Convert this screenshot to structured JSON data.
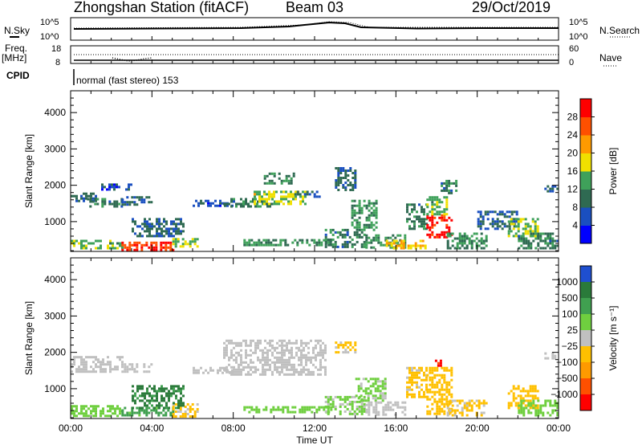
{
  "header": {
    "station": "Zhongshan Station (fitACF)",
    "beam": "Beam 03",
    "date": "29/Oct/2019"
  },
  "strip1": {
    "left_label": "N.Sky",
    "right_label": "N.Search",
    "left_ticks": [
      "10^5",
      "10^0"
    ],
    "right_ticks": [
      "10^5",
      "10^0"
    ]
  },
  "strip2": {
    "left_label_1": "Freq.",
    "left_label_2": "[MHz]",
    "right_label": "Nave",
    "left_ticks": [
      "18",
      "8"
    ],
    "right_ticks": [
      "60",
      "0"
    ]
  },
  "cpid": {
    "label": "CPID",
    "text": "normal (fast stereo) 153"
  },
  "power_panel": {
    "ylabel": "Slant Range [km]",
    "colorbar_label": "Power [dB]",
    "colorbar_ticks": [
      "28",
      "24",
      "20",
      "16",
      "12",
      "8",
      "4"
    ],
    "colors": [
      "#0000ff",
      "#1a4fc0",
      "#2f6a52",
      "#3fa15a",
      "#f0e000",
      "#ff9a00",
      "#ff5000",
      "#ff0000"
    ]
  },
  "velocity_panel": {
    "ylabel": "Slant Range [km]",
    "colorbar_label": "Velocity [m s⁻¹]",
    "colorbar_ticks": [
      "1000",
      "500",
      "100",
      "25",
      "−25",
      "−100",
      "−500",
      "−1000"
    ],
    "colors": [
      "#1f4fd0",
      "#2a7a3a",
      "#40a050",
      "#6fcf3f",
      "#c0c0c0",
      "#ffc000",
      "#ff9a00",
      "#ff5000",
      "#ff0000"
    ]
  },
  "x_axis": {
    "label": "Time UT",
    "ticks": [
      "00:00",
      "04:00",
      "08:00",
      "12:00",
      "16:00",
      "20:00",
      "00:00"
    ]
  },
  "chart_data": [
    {
      "type": "heatmap",
      "title": "Power [dB]",
      "xlabel": "Time UT",
      "ylabel": "Slant Range [km]",
      "xlim": [
        0,
        24
      ],
      "ylim": [
        180,
        4600
      ],
      "clim": [
        0,
        30
      ],
      "regions": [
        {
          "t": [
            0.0,
            1.3
          ],
          "r": [
            1600,
            1800
          ],
          "v": 8
        },
        {
          "t": [
            0.8,
            2.5
          ],
          "r": [
            1450,
            1650
          ],
          "v": 10
        },
        {
          "t": [
            2.5,
            4.0
          ],
          "r": [
            1500,
            1700
          ],
          "v": 8
        },
        {
          "t": [
            0.0,
            2.5
          ],
          "r": [
            280,
            500
          ],
          "v": 14
        },
        {
          "t": [
            2.5,
            5.0
          ],
          "r": [
            250,
            450
          ],
          "v": 26
        },
        {
          "t": [
            5.0,
            6.2
          ],
          "r": [
            300,
            550
          ],
          "v": 14
        },
        {
          "t": [
            3.0,
            5.5
          ],
          "r": [
            600,
            1100
          ],
          "v": 8
        },
        {
          "t": [
            1.5,
            3.0
          ],
          "r": [
            1900,
            2050
          ],
          "v": 6
        },
        {
          "t": [
            6.0,
            8.0
          ],
          "r": [
            1450,
            1600
          ],
          "v": 6
        },
        {
          "t": [
            7.5,
            10.0
          ],
          "r": [
            1450,
            1650
          ],
          "v": 10
        },
        {
          "t": [
            9.0,
            11.5
          ],
          "r": [
            1500,
            1850
          ],
          "v": 16
        },
        {
          "t": [
            9.5,
            11.0
          ],
          "r": [
            2050,
            2350
          ],
          "v": 10
        },
        {
          "t": [
            11.0,
            12.2
          ],
          "r": [
            1700,
            1850
          ],
          "v": 8
        },
        {
          "t": [
            8.5,
            12.8
          ],
          "r": [
            330,
            520
          ],
          "v": 12
        },
        {
          "t": [
            12.5,
            14.5
          ],
          "r": [
            300,
            800
          ],
          "v": 10
        },
        {
          "t": [
            13.0,
            14.0
          ],
          "r": [
            1900,
            2500
          ],
          "v": 8
        },
        {
          "t": [
            13.8,
            15.0
          ],
          "r": [
            800,
            1600
          ],
          "v": 12
        },
        {
          "t": [
            14.5,
            16.5
          ],
          "r": [
            280,
            650
          ],
          "v": 12
        },
        {
          "t": [
            15.5,
            17.5
          ],
          "r": [
            300,
            500
          ],
          "v": 18
        },
        {
          "t": [
            16.5,
            17.5
          ],
          "r": [
            800,
            1500
          ],
          "v": 10
        },
        {
          "t": [
            17.5,
            18.8
          ],
          "r": [
            600,
            1200
          ],
          "v": 28
        },
        {
          "t": [
            17.5,
            18.5
          ],
          "r": [
            1200,
            1700
          ],
          "v": 14
        },
        {
          "t": [
            18.2,
            19.0
          ],
          "r": [
            1800,
            2150
          ],
          "v": 10
        },
        {
          "t": [
            18.5,
            20.5
          ],
          "r": [
            300,
            700
          ],
          "v": 12
        },
        {
          "t": [
            20.0,
            22.0
          ],
          "r": [
            800,
            1300
          ],
          "v": 8
        },
        {
          "t": [
            21.5,
            23.0
          ],
          "r": [
            600,
            1100
          ],
          "v": 14
        },
        {
          "t": [
            22.0,
            24.0
          ],
          "r": [
            300,
            700
          ],
          "v": 10
        },
        {
          "t": [
            23.3,
            24.0
          ],
          "r": [
            1850,
            2000
          ],
          "v": 8
        }
      ]
    },
    {
      "type": "heatmap",
      "title": "Velocity [m s⁻¹]",
      "xlabel": "Time UT",
      "ylabel": "Slant Range [km]",
      "xlim": [
        0,
        24
      ],
      "ylim": [
        180,
        4600
      ],
      "clim": [
        -1000,
        1000
      ],
      "regions": [
        {
          "t": [
            0.0,
            2.5
          ],
          "r": [
            1500,
            1900
          ],
          "v": 0
        },
        {
          "t": [
            2.5,
            4.0
          ],
          "r": [
            1500,
            1700
          ],
          "v": 0
        },
        {
          "t": [
            0.0,
            2.5
          ],
          "r": [
            280,
            550
          ],
          "v": 200
        },
        {
          "t": [
            2.5,
            5.0
          ],
          "r": [
            300,
            500
          ],
          "v": 400
        },
        {
          "t": [
            5.0,
            6.3
          ],
          "r": [
            250,
            600
          ],
          "v": -150
        },
        {
          "t": [
            3.0,
            5.5
          ],
          "r": [
            500,
            1100
          ],
          "v": 600
        },
        {
          "t": [
            6.0,
            8.0
          ],
          "r": [
            1450,
            1600
          ],
          "v": 0
        },
        {
          "t": [
            7.5,
            12.5
          ],
          "r": [
            1400,
            2350
          ],
          "v": 0
        },
        {
          "t": [
            8.5,
            12.8
          ],
          "r": [
            330,
            520
          ],
          "v": 200
        },
        {
          "t": [
            12.5,
            14.5
          ],
          "r": [
            300,
            800
          ],
          "v": 150
        },
        {
          "t": [
            13.0,
            14.0
          ],
          "r": [
            2000,
            2300
          ],
          "v": -150
        },
        {
          "t": [
            14.0,
            15.5
          ],
          "r": [
            700,
            1300
          ],
          "v": 150
        },
        {
          "t": [
            14.5,
            16.5
          ],
          "r": [
            280,
            650
          ],
          "v": 0
        },
        {
          "t": [
            16.5,
            17.5
          ],
          "r": [
            800,
            1600
          ],
          "v": -150
        },
        {
          "t": [
            17.5,
            18.8
          ],
          "r": [
            300,
            1600
          ],
          "v": -200
        },
        {
          "t": [
            17.8,
            18.2
          ],
          "r": [
            1650,
            1800
          ],
          "v": -800
        },
        {
          "t": [
            18.5,
            20.5
          ],
          "r": [
            300,
            700
          ],
          "v": -150
        },
        {
          "t": [
            21.5,
            23.0
          ],
          "r": [
            500,
            1100
          ],
          "v": -200
        },
        {
          "t": [
            22.0,
            24.0
          ],
          "r": [
            300,
            700
          ],
          "v": 200
        },
        {
          "t": [
            23.3,
            24.0
          ],
          "r": [
            1850,
            2000
          ],
          "v": 0
        }
      ]
    }
  ]
}
